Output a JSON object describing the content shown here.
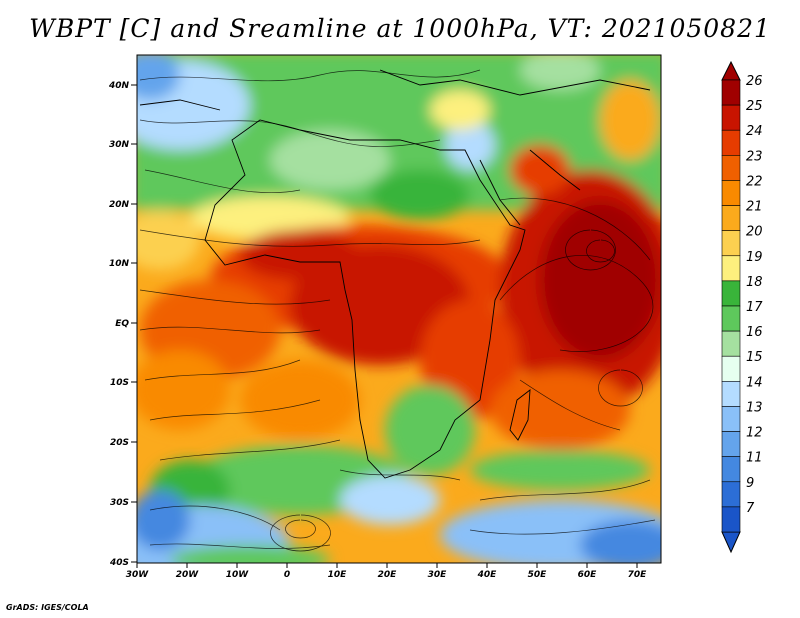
{
  "title": "WBPT [C] and Sreamline at 1000hPa, VT: 2021050821",
  "credit": "GrADS: IGES/COLA",
  "map": {
    "lat_labels": [
      "40N",
      "30N",
      "20N",
      "10N",
      "EQ",
      "10S",
      "20S",
      "30S",
      "40S"
    ],
    "lon_labels": [
      "30W",
      "20W",
      "10W",
      "0",
      "10E",
      "20E",
      "30E",
      "40E",
      "50E",
      "60E",
      "70E"
    ],
    "lat_range": [
      -40,
      44
    ],
    "lon_range": [
      -30,
      75
    ]
  },
  "colorbar": {
    "labels": [
      "26",
      "25",
      "24",
      "23",
      "22",
      "21",
      "20",
      "19",
      "18",
      "17",
      "16",
      "15",
      "14",
      "13",
      "12",
      "11",
      "9",
      "7"
    ],
    "colors": [
      "#a00000",
      "#c81400",
      "#e63c00",
      "#f06000",
      "#f98a00",
      "#fbaa1c",
      "#fcd050",
      "#fdf07e",
      "#39b43a",
      "#5ec85c",
      "#a5e0a0",
      "#e6fff0",
      "#b4dcff",
      "#8ac0f8",
      "#64a4ec",
      "#4488e0",
      "#2c6ed6",
      "#1a55c8"
    ]
  }
}
